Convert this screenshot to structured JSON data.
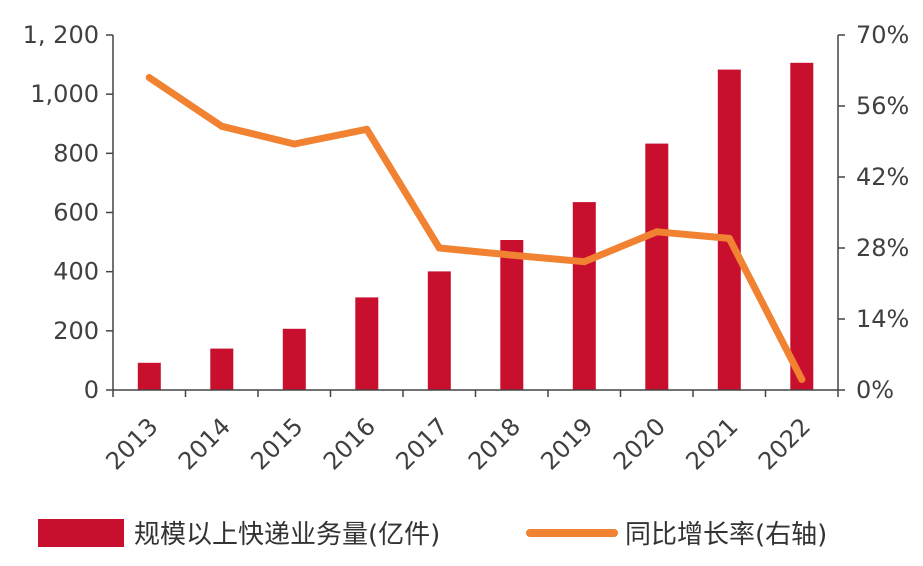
{
  "chart_data": {
    "type": "bar+line",
    "categories": [
      "2013",
      "2014",
      "2015",
      "2016",
      "2017",
      "2018",
      "2019",
      "2020",
      "2021",
      "2022"
    ],
    "series": [
      {
        "name": "规模以上快递业务量(亿件)",
        "type": "bar",
        "axis": "left",
        "color": "#C8102E",
        "values": [
          92,
          140,
          207,
          313,
          401,
          507,
          635,
          833,
          1083,
          1106
        ]
      },
      {
        "name": "同比增长率(右轴)",
        "type": "line",
        "axis": "right",
        "color": "#F08232",
        "values": [
          61.6,
          52.0,
          48.5,
          51.4,
          28.0,
          26.6,
          25.3,
          31.2,
          29.9,
          2.1
        ]
      }
    ],
    "y_left": {
      "ylim": [
        0,
        1200
      ],
      "ticks": [
        0,
        200,
        400,
        600,
        800,
        1000,
        1200
      ],
      "tick_labels": [
        "0",
        "200",
        "400",
        "600",
        "800",
        "1,000",
        "1, 200"
      ]
    },
    "y_right": {
      "ylim": [
        0,
        70
      ],
      "ticks": [
        0,
        14,
        28,
        42,
        56,
        70
      ],
      "tick_labels": [
        "0%",
        "14%",
        "28%",
        "42%",
        "56%",
        "70%"
      ]
    },
    "legend_position": "bottom",
    "grid": false
  }
}
